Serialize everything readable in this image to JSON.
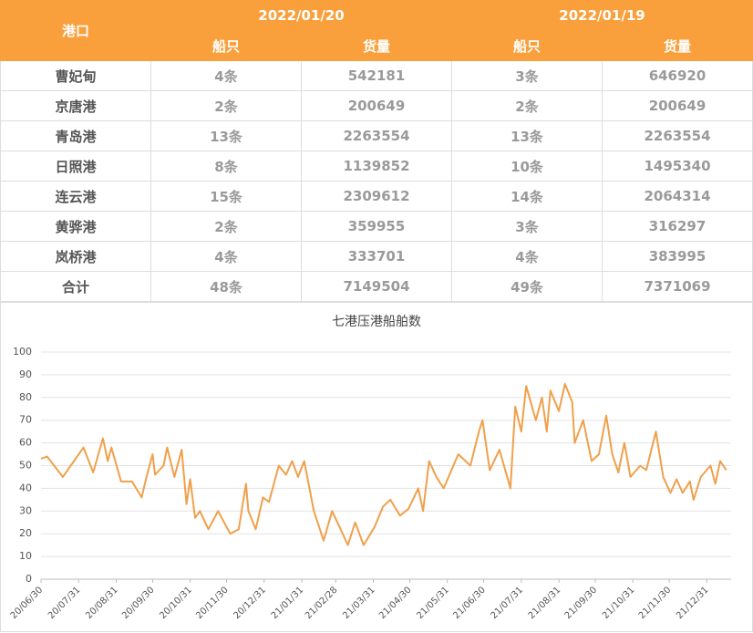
{
  "table": {
    "header": {
      "port": "港口",
      "dates": [
        "2022/01/20",
        "2022/01/19"
      ],
      "sub": [
        "船只",
        "货量",
        "船只",
        "货量"
      ]
    },
    "rows": [
      [
        "曹妃甸",
        "4条",
        542181,
        "3条",
        646920
      ],
      [
        "京唐港",
        "2条",
        200649,
        "2条",
        200649
      ],
      [
        "青岛港",
        "13条",
        2263554,
        "13条",
        2263554
      ],
      [
        "日照港",
        "8条",
        1139852,
        "10条",
        1495340
      ],
      [
        "连云港",
        "15条",
        2309612,
        "14条",
        2064314
      ],
      [
        "黄骅港",
        "2条",
        359955,
        "3条",
        316297
      ],
      [
        "岚桥港",
        "4条",
        333701,
        "4条",
        383995
      ],
      [
        "合计",
        "48条",
        7149504,
        "49条",
        7371069
      ]
    ]
  },
  "chart_data": {
    "type": "line",
    "title": "七港压港船舶数",
    "color": "#f0a04b",
    "grid": true,
    "xlim": [
      "20/06/30",
      "22/01/20"
    ],
    "xticks": [
      "20/06/30",
      "20/07/31",
      "20/08/31",
      "20/09/30",
      "20/10/31",
      "20/11/30",
      "20/12/31",
      "21/01/31",
      "21/02/28",
      "21/03/31",
      "21/04/30",
      "21/05/31",
      "21/06/30",
      "21/07/31",
      "21/08/31",
      "21/09/30",
      "21/10/31",
      "21/11/30",
      "21/12/31"
    ],
    "ylim": [
      0,
      100
    ],
    "yticks": [
      0,
      10,
      20,
      30,
      40,
      50,
      60,
      70,
      80,
      90,
      100
    ],
    "x": [
      "20/06/30",
      "20/07/05",
      "20/07/18",
      "20/08/04",
      "20/08/12",
      "20/08/20",
      "20/08/24",
      "20/08/27",
      "20/09/04",
      "20/09/13",
      "20/09/21",
      "20/09/25",
      "20/09/30",
      "20/10/02",
      "20/10/09",
      "20/10/12",
      "20/10/18",
      "20/10/24",
      "20/10/28",
      "20/10/31",
      "20/11/04",
      "20/11/08",
      "20/11/15",
      "20/11/23",
      "20/12/03",
      "20/12/10",
      "20/12/16",
      "20/12/18",
      "20/12/24",
      "20/12/30",
      "21/01/04",
      "21/01/12",
      "21/01/18",
      "21/01/23",
      "21/01/28",
      "21/02/02",
      "21/02/10",
      "21/02/18",
      "21/02/25",
      "21/03/04",
      "21/03/10",
      "21/03/16",
      "21/03/23",
      "21/04/01",
      "21/04/08",
      "21/04/14",
      "21/04/22",
      "21/04/29",
      "21/05/07",
      "21/05/11",
      "21/05/16",
      "21/05/22",
      "21/05/28",
      "21/06/09",
      "21/06/19",
      "21/06/26",
      "21/06/29",
      "21/07/05",
      "21/07/13",
      "21/07/22",
      "21/07/26",
      "21/07/31",
      "21/08/04",
      "21/08/12",
      "21/08/17",
      "21/08/21",
      "21/08/24",
      "21/08/31",
      "21/09/05",
      "21/09/11",
      "21/09/13",
      "21/09/20",
      "21/09/27",
      "21/10/03",
      "21/10/09",
      "21/10/14",
      "21/10/19",
      "21/10/24",
      "21/10/29",
      "21/11/06",
      "21/11/11",
      "21/11/19",
      "21/11/25",
      "21/12/01",
      "21/12/06",
      "21/12/11",
      "21/12/17",
      "21/12/20",
      "21/12/26",
      "22/01/03",
      "22/01/07",
      "22/01/11",
      "22/01/16"
    ],
    "values": [
      53,
      54,
      45,
      58,
      47,
      62,
      52,
      58,
      43,
      43,
      36,
      45,
      55,
      46,
      50,
      58,
      45,
      57,
      33,
      44,
      27,
      30,
      22,
      30,
      20,
      22,
      42,
      30,
      22,
      36,
      34,
      50,
      46,
      52,
      45,
      52,
      30,
      17,
      30,
      22,
      15,
      25,
      15,
      23,
      32,
      35,
      28,
      31,
      40,
      30,
      52,
      45,
      40,
      55,
      50,
      65,
      70,
      48,
      57,
      40,
      76,
      65,
      85,
      70,
      80,
      65,
      83,
      74,
      86,
      78,
      60,
      70,
      52,
      55,
      72,
      55,
      47,
      60,
      45,
      50,
      48,
      65,
      45,
      38,
      44,
      38,
      43,
      35,
      45,
      50,
      42,
      52,
      48
    ]
  }
}
